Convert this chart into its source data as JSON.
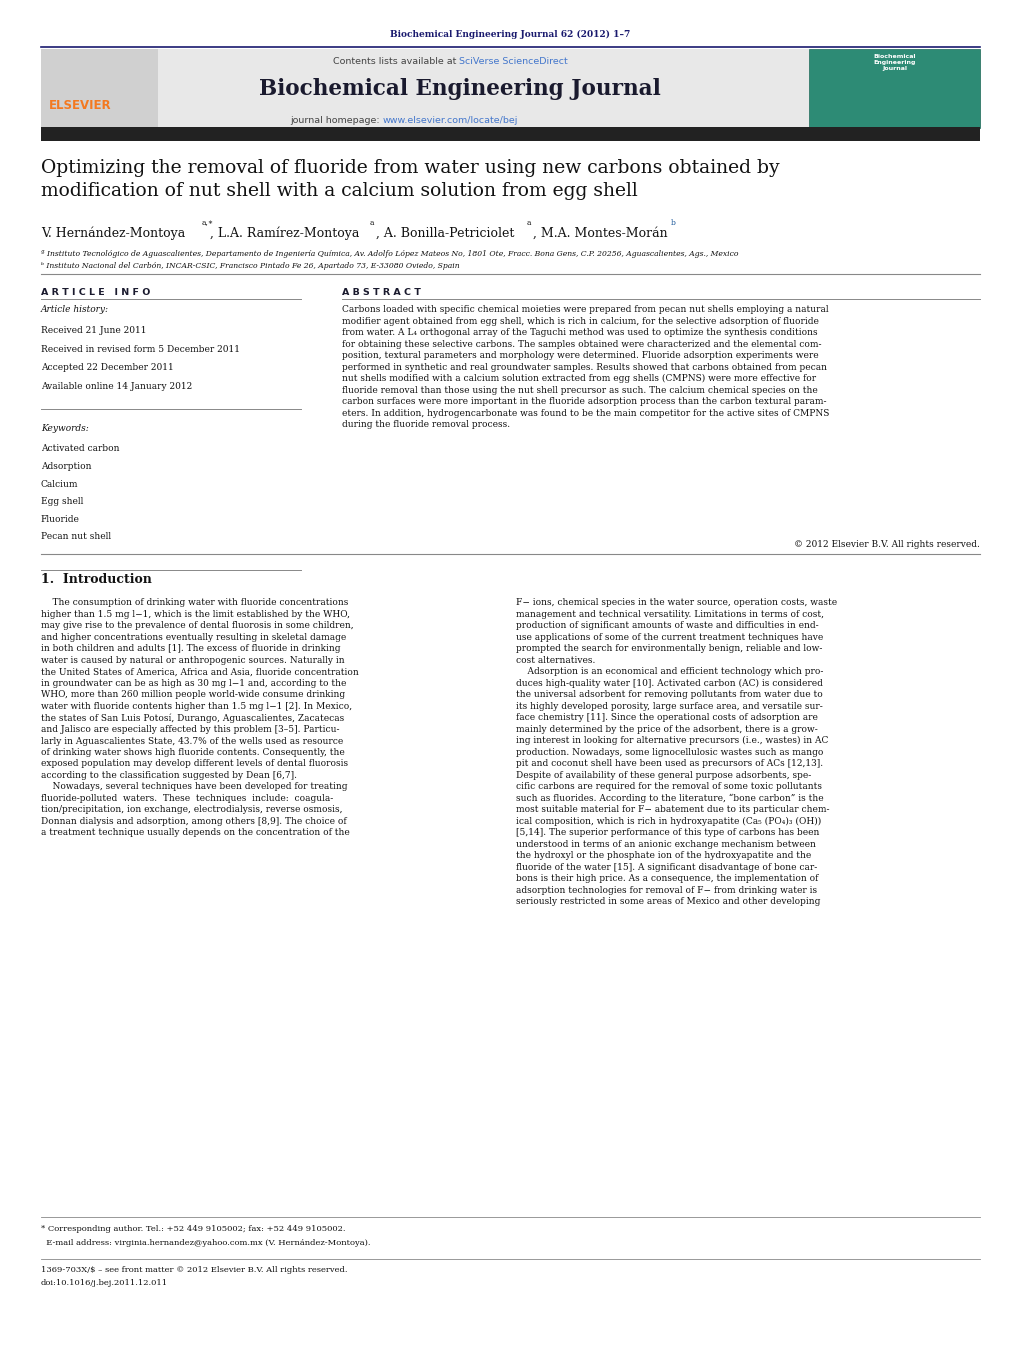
{
  "page_width": 10.21,
  "page_height": 13.51,
  "bg_color": "#ffffff",
  "top_bar_color": "#1a1a6e",
  "header_bg_color": "#e8e8e8",
  "journal_title_color": "#1a1a2e",
  "elsevier_orange": "#f47920",
  "link_color": "#2255aa",
  "sciverse_color": "#4477cc",
  "dark_bar_color": "#222222",
  "top_citation": "Biochemical Engineering Journal 62 (2012) 1–7",
  "journal_name": "Biochemical Engineering Journal",
  "contents_text": "Contents lists available at ",
  "sciverse_text": "SciVerse ScienceDirect",
  "homepage_text": "journal homepage: ",
  "homepage_url": "www.elsevier.com/locate/bej",
  "paper_title": "Optimizing the removal of fluoride from water using new carbons obtained by\nmodification of nut shell with a calcium solution from egg shell",
  "affil_a": "ª Instituto Tecnológico de Aguascalientes, Departamento de Ingeniería Química, Av. Adolfo López Mateos No, 1801 Ote, Fracc. Bona Gens, C.P. 20256, Aguascalientes, Ags., Mexico",
  "affil_b": "ᵇ Instituto Nacional del Carbón, INCAR-CSIC, Francisco Pintado Fe 26, Apartado 73, E-33080 Oviedo, Spain",
  "article_info_title": "A R T I C L E   I N F O",
  "abstract_title": "A B S T R A C T",
  "article_history_title": "Article history:",
  "received1": "Received 21 June 2011",
  "received2": "Received in revised form 5 December 2011",
  "accepted": "Accepted 22 December 2011",
  "available": "Available online 14 January 2012",
  "keywords_title": "Keywords:",
  "keywords": [
    "Activated carbon",
    "Adsorption",
    "Calcium",
    "Egg shell",
    "Fluoride",
    "Pecan nut shell"
  ],
  "abstract_text": "Carbons loaded with specific chemical moieties were prepared from pecan nut shells employing a natural\nmodifier agent obtained from egg shell, which is rich in calcium, for the selective adsorption of fluoride\nfrom water. A L₄ orthogonal array of the Taguchi method was used to optimize the synthesis conditions\nfor obtaining these selective carbons. The samples obtained were characterized and the elemental com-\nposition, textural parameters and morphology were determined. Fluoride adsorption experiments were\nperformed in synthetic and real groundwater samples. Results showed that carbons obtained from pecan\nnut shells modified with a calcium solution extracted from egg shells (CMPNS) were more effective for\nfluoride removal than those using the nut shell precursor as such. The calcium chemical species on the\ncarbon surfaces were more important in the fluoride adsorption process than the carbon textural param-\neters. In addition, hydrogencarbonate was found to be the main competitor for the active sites of CMPNS\nduring the fluoride removal process.",
  "copyright_text": "© 2012 Elsevier B.V. All rights reserved.",
  "section1_title": "1.  Introduction",
  "intro_left_col": "    The consumption of drinking water with fluoride concentrations\nhigher than 1.5 mg l−1, which is the limit established by the WHO,\nmay give rise to the prevalence of dental fluorosis in some children,\nand higher concentrations eventually resulting in skeletal damage\nin both children and adults [1]. The excess of fluoride in drinking\nwater is caused by natural or anthropogenic sources. Naturally in\nthe United States of America, Africa and Asia, fluoride concentration\nin groundwater can be as high as 30 mg l−1 and, according to the\nWHO, more than 260 million people world-wide consume drinking\nwater with fluoride contents higher than 1.5 mg l−1 [2]. In Mexico,\nthe states of San Luis Potosí, Durango, Aguascalientes, Zacatecas\nand Jalisco are especially affected by this problem [3–5]. Particu-\nlarly in Aguascalientes State, 43.7% of the wells used as resource\nof drinking water shows high fluoride contents. Consequently, the\nexposed population may develop different levels of dental fluorosis\naccording to the classification suggested by Dean [6,7].\n    Nowadays, several techniques have been developed for treating\nfluoride-polluted  waters.  These  techniques  include:  coagula-\ntion/precipitation, ion exchange, electrodialysis, reverse osmosis,\nDonnan dialysis and adsorption, among others [8,9]. The choice of\na treatment technique usually depends on the concentration of the",
  "intro_right_col": "F− ions, chemical species in the water source, operation costs, waste\nmanagement and technical versatility. Limitations in terms of cost,\nproduction of significant amounts of waste and difficulties in end-\nuse applications of some of the current treatment techniques have\nprompted the search for environmentally benign, reliable and low-\ncost alternatives.\n    Adsorption is an economical and efficient technology which pro-\nduces high-quality water [10]. Activated carbon (AC) is considered\nthe universal adsorbent for removing pollutants from water due to\nits highly developed porosity, large surface area, and versatile sur-\nface chemistry [11]. Since the operational costs of adsorption are\nmainly determined by the price of the adsorbent, there is a grow-\ning interest in looking for alternative precursors (i.e., wastes) in AC\nproduction. Nowadays, some lignocellulosic wastes such as mango\npit and coconut shell have been used as precursors of ACs [12,13].\nDespite of availability of these general purpose adsorbents, spe-\ncific carbons are required for the removal of some toxic pollutants\nsuch as fluorides. According to the literature, “bone carbon” is the\nmost suitable material for F− abatement due to its particular chem-\nical composition, which is rich in hydroxyapatite (Ca₅ (PO₄)₃ (OH))\n[5,14]. The superior performance of this type of carbons has been\nunderstood in terms of an anionic exchange mechanism between\nthe hydroxyl or the phosphate ion of the hydroxyapatite and the\nfluoride of the water [15]. A significant disadvantage of bone car-\nbons is their high price. As a consequence, the implementation of\nadsorption technologies for removal of F− from drinking water is\nseriously restricted in some areas of Mexico and other developing",
  "footnote_star": "* Corresponding author. Tel.: +52 449 9105002; fax: +52 449 9105002.",
  "footnote_email": "  E-mail address: virginia.hernandez@yahoo.com.mx (V. Hernández-Montoya).",
  "footnote_issn": "1369-703X/$ – see front matter © 2012 Elsevier B.V. All rights reserved.",
  "footnote_doi": "doi:10.1016/j.bej.2011.12.011"
}
